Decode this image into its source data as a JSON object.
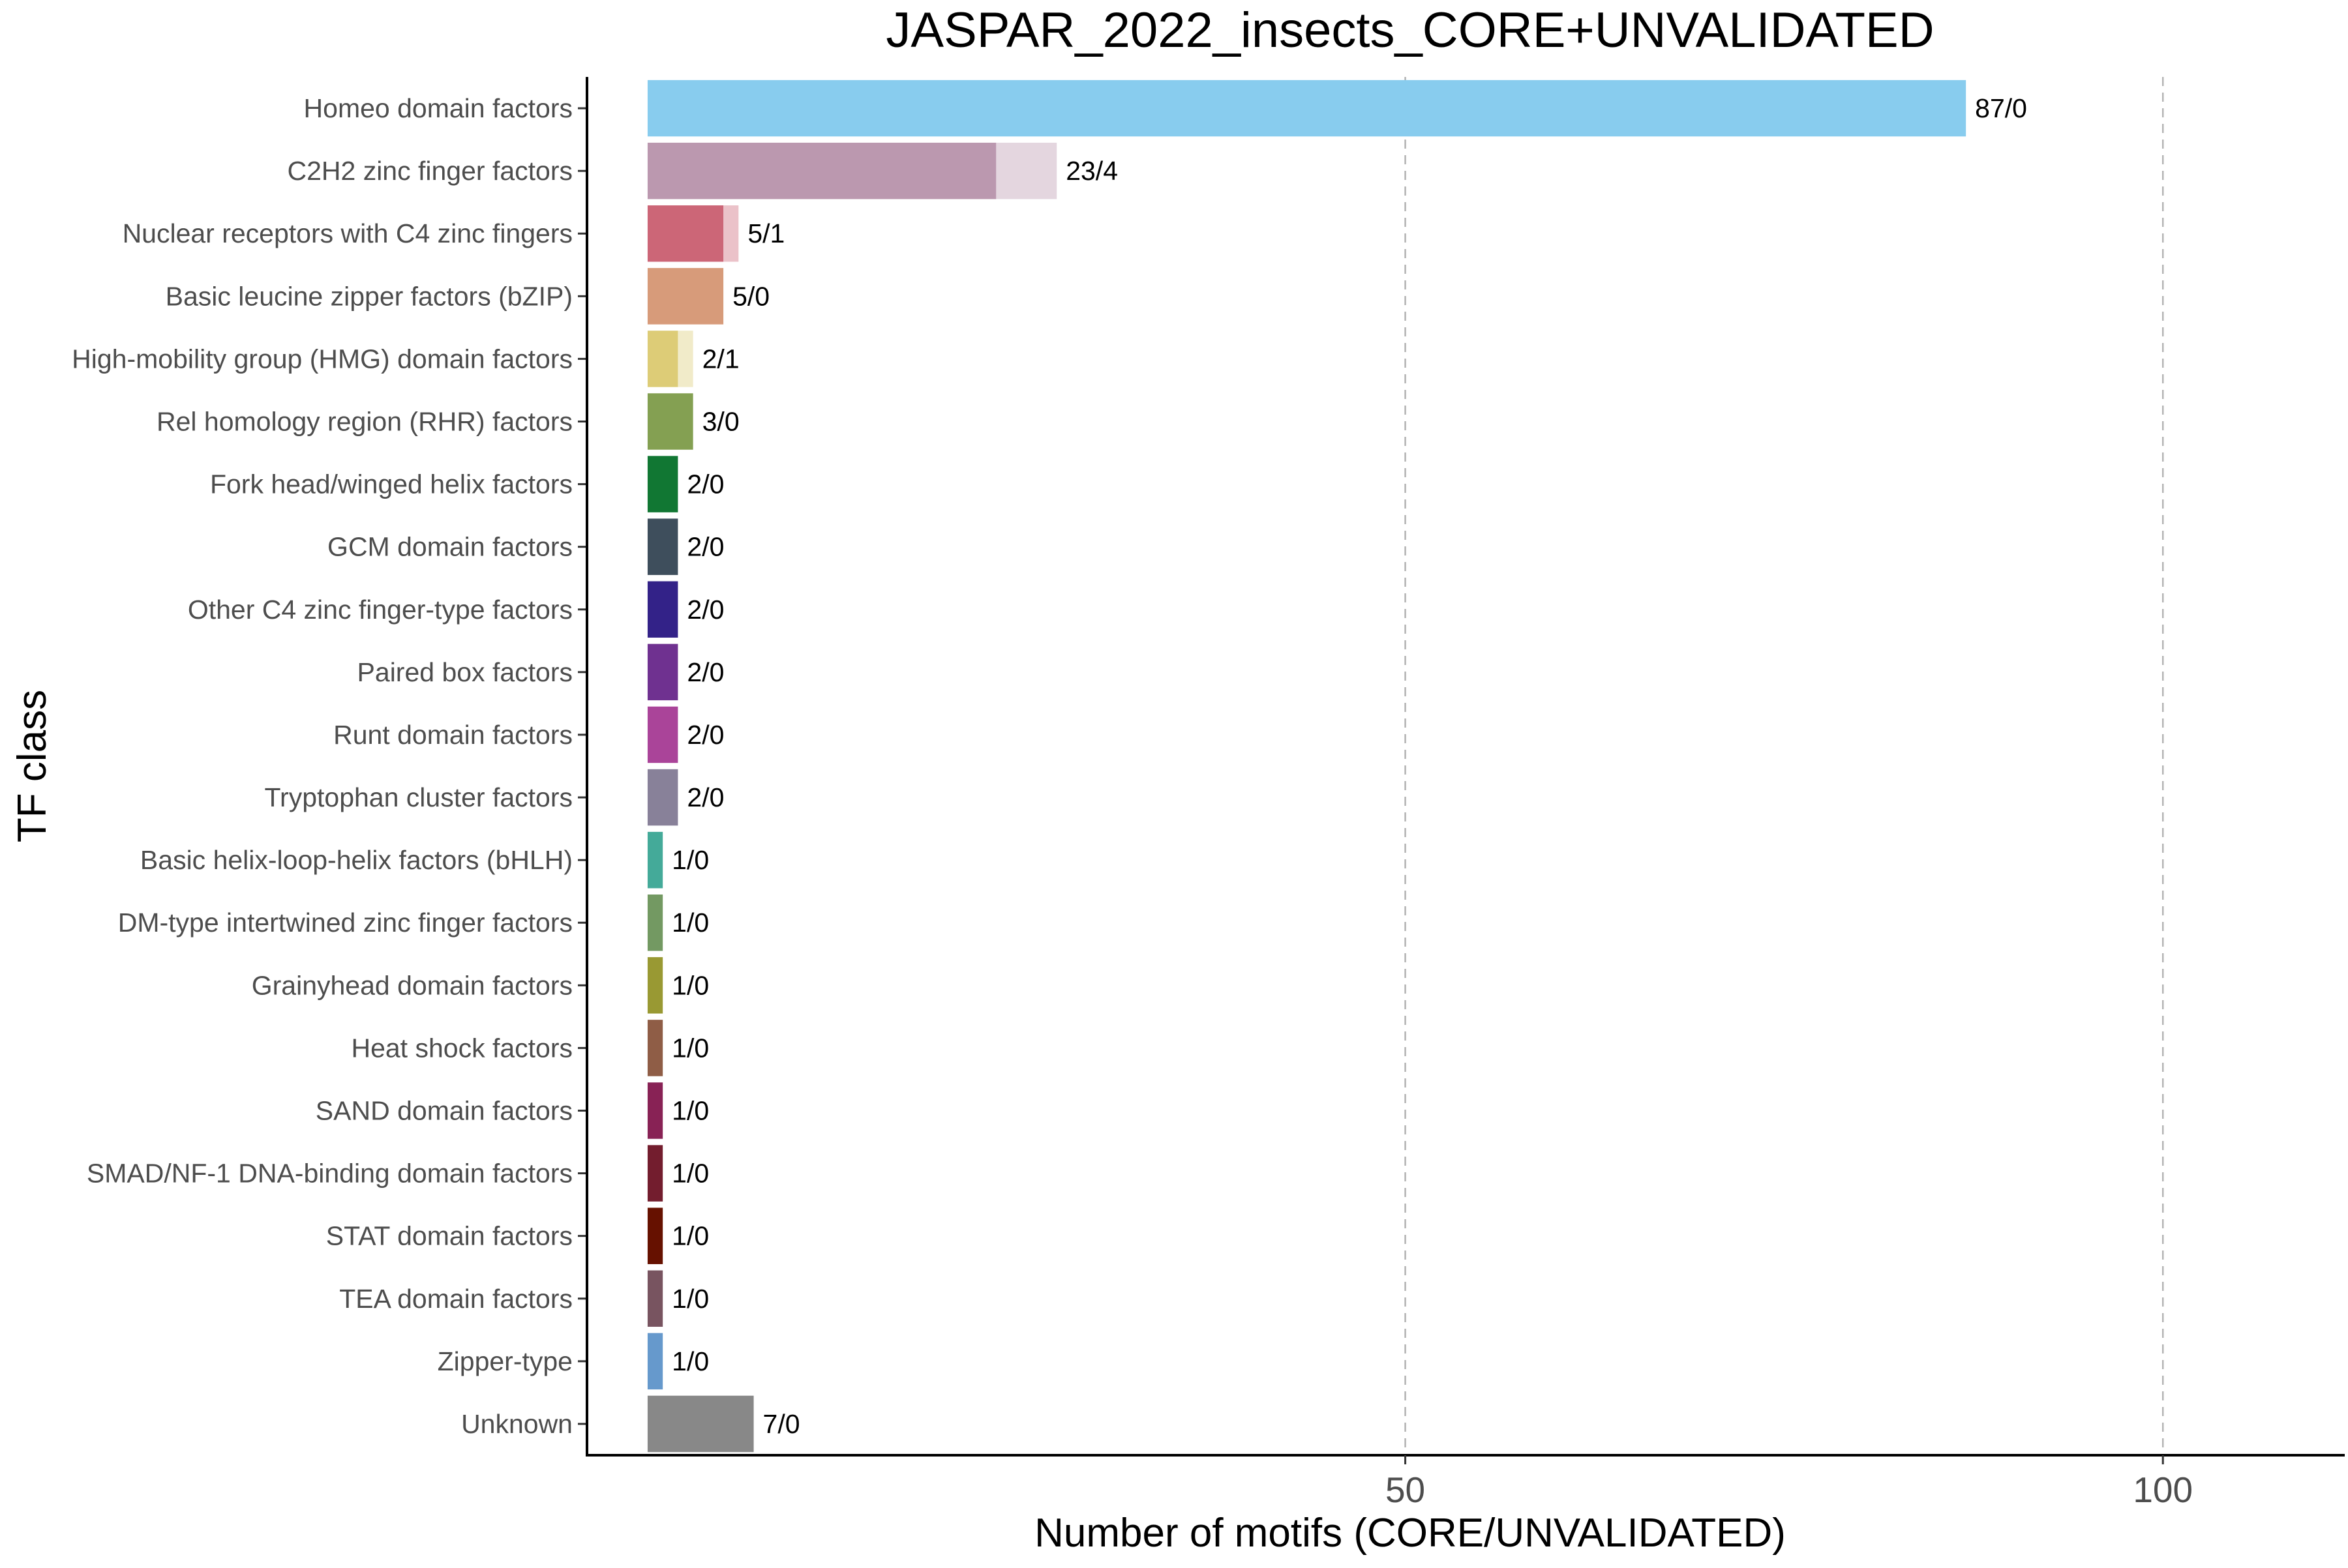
{
  "chart_data": {
    "type": "bar",
    "orientation": "horizontal",
    "stacked": true,
    "title": "JASPAR_2022_insects_CORE+UNVALIDATED",
    "xlabel": "Number of motifs (CORE/UNVALIDATED)",
    "ylabel": "TF class",
    "xlim": [
      -4,
      112
    ],
    "xticks": [
      50,
      100
    ],
    "grid": "vertical dashed at x ticks",
    "legend": "none",
    "categories": [
      "Homeo domain factors",
      "C2H2 zinc finger factors",
      "Nuclear receptors with C4 zinc fingers",
      "Basic leucine zipper factors (bZIP)",
      "High-mobility group (HMG) domain factors",
      "Rel homology region (RHR) factors",
      "Fork head/winged helix factors",
      "GCM domain factors",
      "Other C4 zinc finger-type factors",
      "Paired box factors",
      "Runt domain factors",
      "Tryptophan cluster factors",
      "Basic helix-loop-helix factors (bHLH)",
      "DM-type intertwined zinc finger factors",
      "Grainyhead domain factors",
      "Heat shock factors",
      "SAND domain factors",
      "SMAD/NF-1 DNA-binding domain factors",
      "STAT domain factors",
      "TEA domain factors",
      "Zipper-type",
      "Unknown"
    ],
    "series": [
      {
        "name": "CORE",
        "values": [
          87,
          23,
          5,
          5,
          2,
          3,
          2,
          2,
          2,
          2,
          2,
          2,
          1,
          1,
          1,
          1,
          1,
          1,
          1,
          1,
          1,
          7
        ]
      },
      {
        "name": "UNVALIDATED",
        "values": [
          0,
          4,
          1,
          0,
          1,
          0,
          0,
          0,
          0,
          0,
          0,
          0,
          0,
          0,
          0,
          0,
          0,
          0,
          0,
          0,
          0,
          0
        ]
      }
    ],
    "bar_labels": [
      "87/0",
      "23/4",
      "5/1",
      "5/0",
      "2/1",
      "3/0",
      "2/0",
      "2/0",
      "2/0",
      "2/0",
      "2/0",
      "2/0",
      "1/0",
      "1/0",
      "1/0",
      "1/0",
      "1/0",
      "1/0",
      "1/0",
      "1/0",
      "1/0",
      "7/0"
    ],
    "colors": [
      "#88CCEE",
      "#BB98AF",
      "#CC6677",
      "#D79B7A",
      "#DDCC77",
      "#84A052",
      "#117733",
      "#3E4E5C",
      "#332288",
      "#6F3190",
      "#AA4499",
      "#888199",
      "#44AA99",
      "#739962",
      "#999933",
      "#8F5D46",
      "#882255",
      "#731D2E",
      "#661100",
      "#785460",
      "#6699CC",
      "#888888"
    ],
    "unvalidated_opacity": 0.4
  }
}
